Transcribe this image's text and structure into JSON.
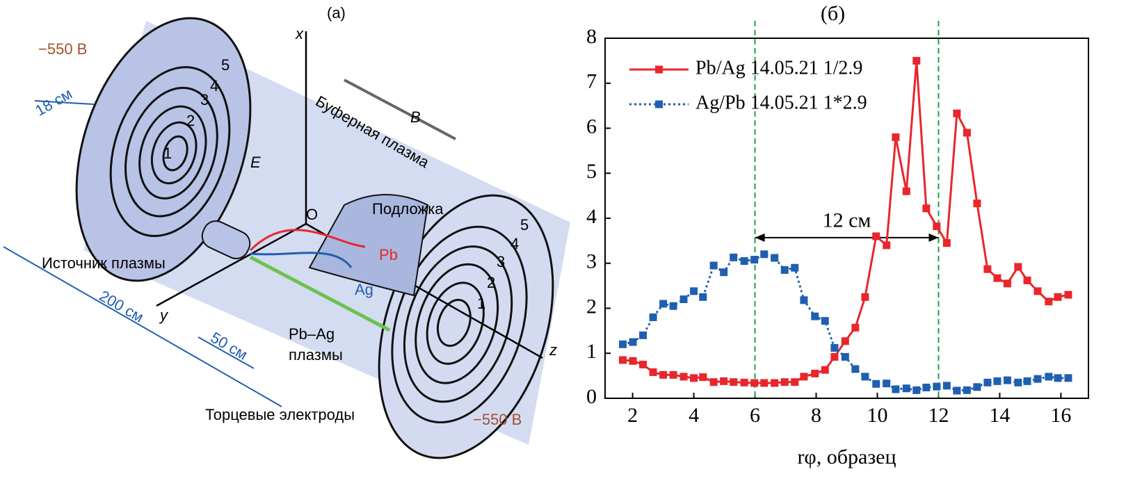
{
  "diagram": {
    "title": "(a)",
    "axis_x": "x",
    "axis_y": "y",
    "axis_z": "z",
    "origin": "O",
    "field_e": "E",
    "field_b": "B",
    "buffer_plasma": "Буферная плазма",
    "substrate": "Подложка",
    "pb": "Pb",
    "ag": "Ag",
    "source": "Источник плазмы",
    "pbag_1": "Pb–Ag",
    "pbag_2": "плазмы",
    "end_electrodes": "Торцевые электроды",
    "voltage_left": "−550 В",
    "voltage_right": "−550 В",
    "dim_18": "18 см",
    "dim_200": "200 см",
    "dim_50": "50 см",
    "rings": [
      "1",
      "2",
      "3",
      "4",
      "5"
    ]
  },
  "chart_data": {
    "type": "line",
    "title": "(б)",
    "x_label": "rφ, образец",
    "x": [
      1.68,
      2.01,
      2.34,
      2.67,
      3.0,
      3.33,
      3.67,
      4.0,
      4.3,
      4.65,
      4.98,
      5.3,
      5.65,
      5.98,
      6.3,
      6.64,
      6.97,
      7.3,
      7.6,
      7.96,
      8.29,
      8.6,
      8.95,
      9.28,
      9.6,
      9.96,
      10.3,
      10.6,
      10.95,
      11.28,
      11.6,
      11.94,
      12.27,
      12.6,
      12.93,
      13.26,
      13.6,
      13.92,
      14.25,
      14.6,
      14.9,
      15.24,
      15.6,
      15.9,
      16.24
    ],
    "series": [
      {
        "name": "Pb/Ag 14.05.21 1/2.9",
        "color": "#e8262b",
        "linestyle": "solid",
        "values": [
          0.85,
          0.83,
          0.75,
          0.58,
          0.52,
          0.52,
          0.48,
          0.45,
          0.47,
          0.36,
          0.38,
          0.36,
          0.35,
          0.34,
          0.34,
          0.34,
          0.36,
          0.36,
          0.48,
          0.55,
          0.63,
          0.92,
          1.27,
          1.57,
          2.25,
          3.6,
          3.4,
          5.8,
          4.6,
          7.5,
          4.22,
          3.82,
          3.45,
          6.33,
          5.9,
          4.33,
          2.87,
          2.67,
          2.55,
          2.92,
          2.62,
          2.38,
          2.15,
          2.25,
          2.3
        ]
      },
      {
        "name": "Ag/Pb 14.05.21 1*2.9",
        "color": "#1f5fb0",
        "linestyle": "dotted",
        "values": [
          1.2,
          1.25,
          1.4,
          1.8,
          2.1,
          2.05,
          2.2,
          2.38,
          2.25,
          2.95,
          2.8,
          3.13,
          3.05,
          3.08,
          3.2,
          3.12,
          2.85,
          2.9,
          2.18,
          1.82,
          1.72,
          1.12,
          0.92,
          0.65,
          0.48,
          0.32,
          0.33,
          0.2,
          0.22,
          0.18,
          0.24,
          0.26,
          0.28,
          0.17,
          0.18,
          0.25,
          0.35,
          0.38,
          0.4,
          0.35,
          0.38,
          0.43,
          0.48,
          0.45,
          0.45
        ]
      }
    ],
    "xlim": [
      1.1,
      16.9
    ],
    "ylim": [
      0,
      8
    ],
    "xticks": [
      2,
      4,
      6,
      8,
      10,
      12,
      14,
      16
    ],
    "yticks": [
      0,
      1,
      2,
      3,
      4,
      5,
      6,
      7,
      8
    ],
    "vlines": [
      6,
      12
    ],
    "vline_color": "#1aa34a",
    "annotation": {
      "text": "12 см",
      "y": 3.57,
      "from": 6,
      "to": 12
    },
    "legend": "upper left"
  }
}
